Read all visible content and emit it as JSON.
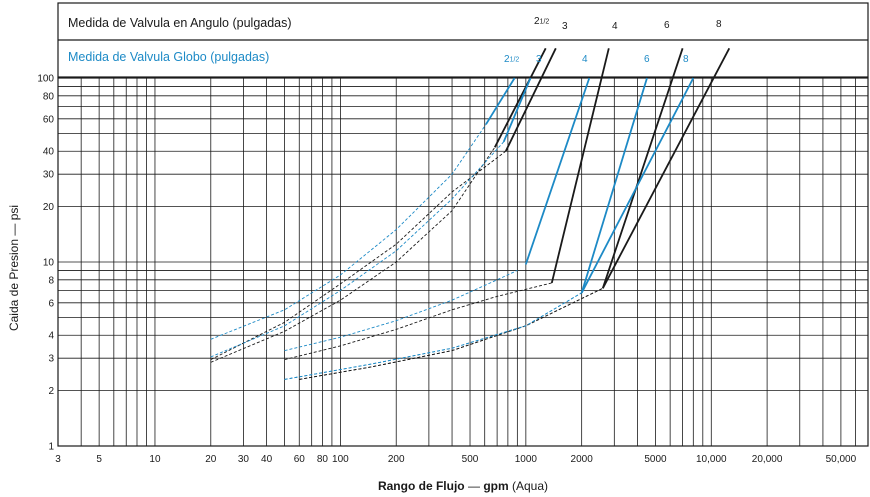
{
  "chart_data": {
    "type": "line",
    "header": {
      "angle_title": "Medida de Valvula en Angulo (pulgadas)",
      "globe_title": "Medida de Valvula Globo (pulgadas)"
    },
    "xlabel_bold_1": "Rango de Flujo",
    "xlabel_dash": " — ",
    "xlabel_bold_2": "gpm",
    "xlabel_rest": " (Aqua)",
    "ylabel": "Caida de Presion — psi",
    "x_scale": "log",
    "y_scale": "log",
    "xlim": [
      3,
      70000
    ],
    "ylim": [
      1,
      100
    ],
    "grid": true,
    "x_ticks": [
      {
        "value": 3,
        "label": "3"
      },
      {
        "value": 5,
        "label": "5"
      },
      {
        "value": 10,
        "label": "10"
      },
      {
        "value": 20,
        "label": "20"
      },
      {
        "value": 30,
        "label": "30"
      },
      {
        "value": 40,
        "label": "40"
      },
      {
        "value": 60,
        "label": "60"
      },
      {
        "value": 80,
        "label": "80"
      },
      {
        "value": 100,
        "label": "100"
      },
      {
        "value": 200,
        "label": "200"
      },
      {
        "value": 500,
        "label": "500"
      },
      {
        "value": 1000,
        "label": "1000"
      },
      {
        "value": 2000,
        "label": "2000"
      },
      {
        "value": 5000,
        "label": "5000"
      },
      {
        "value": 10000,
        "label": "10,000"
      },
      {
        "value": 20000,
        "label": "20,000"
      },
      {
        "value": 50000,
        "label": "50,000"
      }
    ],
    "x_grid": [
      3,
      4,
      5,
      6,
      7,
      8,
      9,
      10,
      20,
      30,
      40,
      50,
      60,
      70,
      80,
      90,
      100,
      200,
      300,
      400,
      500,
      600,
      700,
      800,
      900,
      1000,
      2000,
      3000,
      4000,
      5000,
      6000,
      7000,
      8000,
      9000,
      10000,
      20000,
      30000,
      40000,
      50000,
      60000
    ],
    "y_ticks": [
      {
        "value": 1,
        "label": "1"
      },
      {
        "value": 2,
        "label": "2"
      },
      {
        "value": 3,
        "label": "3"
      },
      {
        "value": 4,
        "label": "4"
      },
      {
        "value": 6,
        "label": "6"
      },
      {
        "value": 8,
        "label": "8"
      },
      {
        "value": 10,
        "label": "10"
      },
      {
        "value": 20,
        "label": "20"
      },
      {
        "value": 30,
        "label": "30"
      },
      {
        "value": 40,
        "label": "40"
      },
      {
        "value": 60,
        "label": "60"
      },
      {
        "value": 80,
        "label": "80"
      },
      {
        "value": 100,
        "label": "100"
      }
    ],
    "y_grid": [
      1,
      2,
      3,
      4,
      5,
      6,
      7,
      8,
      9,
      10,
      20,
      30,
      40,
      50,
      60,
      70,
      80,
      90,
      100
    ],
    "colors": {
      "angle": "#1a1a1a",
      "globe": "#1d8ac6",
      "grid": "#1a1a1a"
    },
    "series": [
      {
        "group": "angle",
        "label_main": "2",
        "label_sub": "1/2",
        "dashed": [
          [
            20,
            2.85
          ],
          [
            50,
            4.2
          ],
          [
            100,
            6.2
          ],
          [
            200,
            10
          ],
          [
            400,
            19
          ],
          [
            680,
            42
          ]
        ],
        "solid": [
          [
            680,
            42
          ],
          [
            1280,
            145
          ]
        ]
      },
      {
        "group": "angle",
        "label_main": "3",
        "label_sub": "",
        "dashed": [
          [
            20,
            2.95
          ],
          [
            50,
            4.7
          ],
          [
            100,
            7.6
          ],
          [
            200,
            12.5
          ],
          [
            400,
            24
          ],
          [
            780,
            40
          ]
        ],
        "solid": [
          [
            780,
            40
          ],
          [
            1450,
            145
          ]
        ]
      },
      {
        "group": "angle",
        "label_main": "4",
        "label_sub": "",
        "dashed": [
          [
            50,
            2.95
          ],
          [
            100,
            3.5
          ],
          [
            200,
            4.3
          ],
          [
            400,
            5.5
          ],
          [
            700,
            6.5
          ],
          [
            1380,
            7.7
          ]
        ],
        "solid": [
          [
            1380,
            7.7
          ],
          [
            2800,
            145
          ]
        ]
      },
      {
        "group": "angle",
        "label_main": "6",
        "label_sub": "",
        "dashed": [
          [
            60,
            2.3
          ],
          [
            150,
            2.7
          ],
          [
            400,
            3.3
          ],
          [
            1000,
            4.5
          ],
          [
            2600,
            7.2
          ]
        ],
        "solid": [
          [
            2600,
            7.2
          ],
          [
            7000,
            145
          ]
        ]
      },
      {
        "group": "angle",
        "label_main": "8",
        "label_sub": "",
        "dashed": [
          [
            60,
            2.3
          ],
          [
            150,
            2.7
          ],
          [
            400,
            3.3
          ],
          [
            1000,
            4.5
          ],
          [
            2600,
            7.2
          ]
        ],
        "solid": [
          [
            2600,
            7.2
          ],
          [
            12500,
            145
          ]
        ]
      },
      {
        "group": "globe",
        "label_main": "2",
        "label_sub": "1/2",
        "dashed": [
          [
            20,
            3.8
          ],
          [
            50,
            5.5
          ],
          [
            100,
            8.5
          ],
          [
            200,
            15
          ],
          [
            400,
            30
          ],
          [
            610,
            56
          ]
        ],
        "solid": [
          [
            610,
            56
          ],
          [
            870,
            100
          ]
        ]
      },
      {
        "group": "globe",
        "label_main": "3",
        "label_sub": "",
        "dashed": [
          [
            20,
            3.05
          ],
          [
            50,
            4.5
          ],
          [
            100,
            7
          ],
          [
            200,
            11.5
          ],
          [
            400,
            22
          ],
          [
            760,
            45
          ]
        ],
        "solid": [
          [
            760,
            45
          ],
          [
            1060,
            100
          ]
        ]
      },
      {
        "group": "globe",
        "label_main": "4",
        "label_sub": "",
        "dashed": [
          [
            50,
            3.3
          ],
          [
            100,
            3.9
          ],
          [
            200,
            4.8
          ],
          [
            400,
            6.2
          ],
          [
            700,
            8
          ],
          [
            900,
            9
          ]
        ],
        "solid": [
          [
            1000,
            9.7
          ],
          [
            2200,
            100
          ]
        ]
      },
      {
        "group": "globe",
        "label_main": "6",
        "label_sub": "",
        "dashed": [
          [
            50,
            2.3
          ],
          [
            150,
            2.8
          ],
          [
            400,
            3.4
          ],
          [
            1000,
            4.5
          ],
          [
            2000,
            6.8
          ]
        ],
        "solid": [
          [
            2000,
            6.8
          ],
          [
            4500,
            100
          ]
        ]
      },
      {
        "group": "globe",
        "label_main": "8",
        "label_sub": "",
        "dashed": [
          [
            50,
            2.3
          ],
          [
            150,
            2.8
          ],
          [
            400,
            3.4
          ],
          [
            1000,
            4.5
          ],
          [
            2000,
            6.8
          ]
        ],
        "solid": [
          [
            2000,
            6.8
          ],
          [
            8000,
            100
          ]
        ]
      }
    ]
  }
}
